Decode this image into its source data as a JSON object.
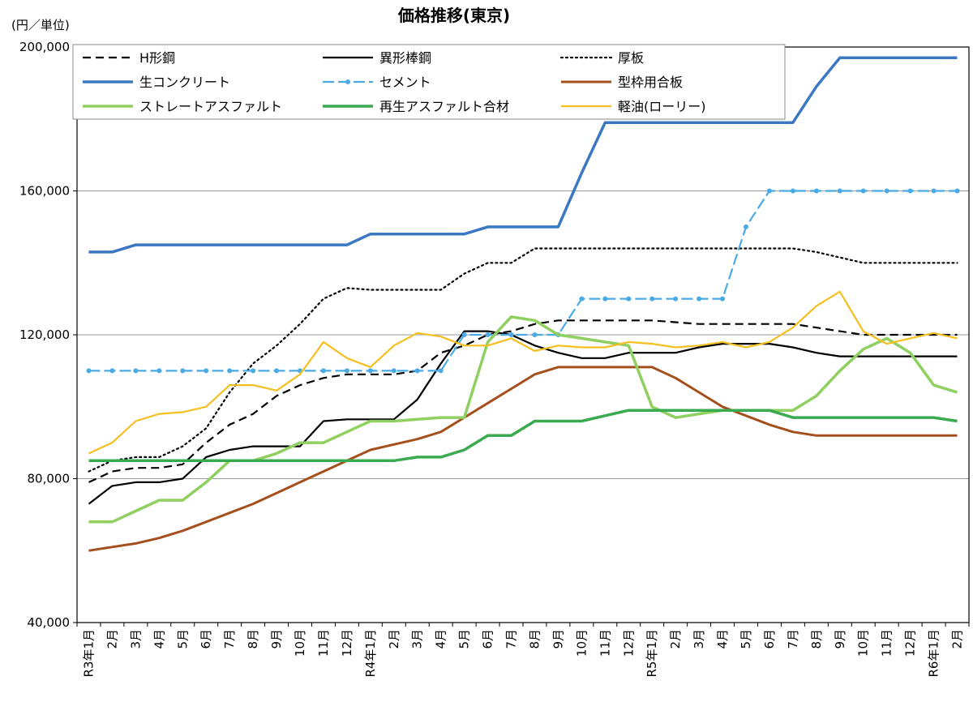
{
  "chart_data": {
    "type": "line",
    "title": "価格推移(東京)",
    "ylabel": "(円／単位)",
    "ylim": [
      40000,
      200000
    ],
    "yticks": [
      "40,000",
      "80,000",
      "120,000",
      "160,000",
      "200,000"
    ],
    "ytick_values": [
      40000,
      80000,
      120000,
      160000,
      200000
    ],
    "categories": [
      "R3年1月",
      "2月",
      "3月",
      "4月",
      "5月",
      "6月",
      "7月",
      "8月",
      "9月",
      "10月",
      "11月",
      "12月",
      "R4年1月",
      "2月",
      "3月",
      "4月",
      "5月",
      "6月",
      "7月",
      "8月",
      "9月",
      "10月",
      "11月",
      "12月",
      "R5年1月",
      "2月",
      "3月",
      "4月",
      "5月",
      "6月",
      "7月",
      "8月",
      "9月",
      "10月",
      "11月",
      "12月",
      "R6年1月",
      "2月"
    ],
    "legend_position": "top",
    "series": [
      {
        "name": "H形鋼",
        "color": "#000000",
        "style": "dashed",
        "values": [
          79000,
          82000,
          83000,
          83000,
          84000,
          90000,
          95000,
          98000,
          103000,
          106000,
          108000,
          109000,
          109000,
          109000,
          110000,
          115000,
          117000,
          120000,
          121000,
          123000,
          124000,
          124000,
          124000,
          124000,
          124000,
          123500,
          123000,
          123000,
          123000,
          123000,
          123000,
          122000,
          121000,
          120000,
          120000,
          120000,
          120000,
          120000
        ]
      },
      {
        "name": "異形棒鋼",
        "color": "#000000",
        "style": "solid",
        "values": [
          73000,
          78000,
          79000,
          79000,
          80000,
          86000,
          88000,
          89000,
          89000,
          89000,
          96000,
          96500,
          96500,
          96500,
          102000,
          112000,
          121000,
          121000,
          120000,
          117000,
          115000,
          113500,
          113500,
          115000,
          115000,
          115000,
          116500,
          117500,
          117500,
          117500,
          116500,
          115000,
          114000,
          114000,
          114000,
          114000,
          114000,
          114000
        ]
      },
      {
        "name": "厚板",
        "color": "#000000",
        "style": "dotted",
        "values": [
          82000,
          85000,
          86000,
          86000,
          89000,
          94000,
          104000,
          112000,
          117000,
          123000,
          130000,
          133000,
          132500,
          132500,
          132500,
          132500,
          137000,
          140000,
          140000,
          144000,
          144000,
          144000,
          144000,
          144000,
          144000,
          144000,
          144000,
          144000,
          144000,
          144000,
          144000,
          143000,
          141500,
          140000,
          140000,
          140000,
          140000,
          140000
        ]
      },
      {
        "name": "生コンクリート",
        "color": "#3b78c3",
        "style": "solid",
        "values": [
          143000,
          143000,
          145000,
          145000,
          145000,
          145000,
          145000,
          145000,
          145000,
          145000,
          145000,
          145000,
          148000,
          148000,
          148000,
          148000,
          148000,
          150000,
          150000,
          150000,
          150000,
          165000,
          179000,
          179000,
          179000,
          179000,
          179000,
          179000,
          179000,
          179000,
          179000,
          189000,
          197000,
          197000,
          197000,
          197000,
          197000,
          197000
        ]
      },
      {
        "name": "セメント",
        "color": "#4aaae6",
        "style": "dashdot",
        "values": [
          110000,
          110000,
          110000,
          110000,
          110000,
          110000,
          110000,
          110000,
          110000,
          110000,
          110000,
          110000,
          110000,
          110000,
          110000,
          110000,
          120000,
          120000,
          120000,
          120000,
          120000,
          130000,
          130000,
          130000,
          130000,
          130000,
          130000,
          130000,
          150000,
          160000,
          160000,
          160000,
          160000,
          160000,
          160000,
          160000,
          160000,
          160000
        ]
      },
      {
        "name": "型枠用合板",
        "color": "#a5501c",
        "style": "solid",
        "values": [
          60000,
          61000,
          62000,
          63500,
          65500,
          68000,
          70500,
          73000,
          76000,
          79000,
          82000,
          85000,
          88000,
          89500,
          91000,
          93000,
          97000,
          101000,
          105000,
          109000,
          111000,
          111000,
          111000,
          111000,
          111000,
          108000,
          104000,
          100000,
          97500,
          95000,
          93000,
          92000,
          92000,
          92000,
          92000,
          92000,
          92000,
          92000
        ]
      },
      {
        "name": "ストレートアスファルト",
        "color": "#8fd060",
        "style": "solid",
        "values": [
          68000,
          68000,
          71000,
          74000,
          74000,
          79000,
          85000,
          85000,
          87000,
          90000,
          90000,
          93000,
          96000,
          96000,
          96500,
          97000,
          97000,
          118000,
          125000,
          124000,
          120000,
          119000,
          118000,
          117000,
          100000,
          97000,
          98000,
          99000,
          99000,
          99000,
          99000,
          103000,
          110000,
          116000,
          119000,
          115000,
          106000,
          104000
        ]
      },
      {
        "name": "再生アスファルト合材",
        "color": "#3aaa50",
        "style": "solid",
        "values": [
          85000,
          85000,
          85000,
          85000,
          85000,
          85000,
          85000,
          85000,
          85000,
          85000,
          85000,
          85000,
          85000,
          85000,
          86000,
          86000,
          88000,
          92000,
          92000,
          96000,
          96000,
          96000,
          97500,
          99000,
          99000,
          99000,
          99000,
          99000,
          99000,
          99000,
          97000,
          97000,
          97000,
          97000,
          97000,
          97000,
          97000,
          96000
        ]
      },
      {
        "name": "軽油(ローリー)",
        "color": "#f5bf20",
        "style": "solid",
        "values": [
          87000,
          90000,
          96000,
          98000,
          98500,
          100000,
          106000,
          106000,
          104500,
          109000,
          118000,
          113500,
          111000,
          117000,
          120500,
          119500,
          117000,
          117000,
          119000,
          115500,
          117000,
          116500,
          116500,
          118000,
          117500,
          116500,
          117000,
          118000,
          116500,
          118000,
          122000,
          128000,
          132000,
          121000,
          117500,
          119000,
          120500,
          119000
        ]
      }
    ]
  }
}
